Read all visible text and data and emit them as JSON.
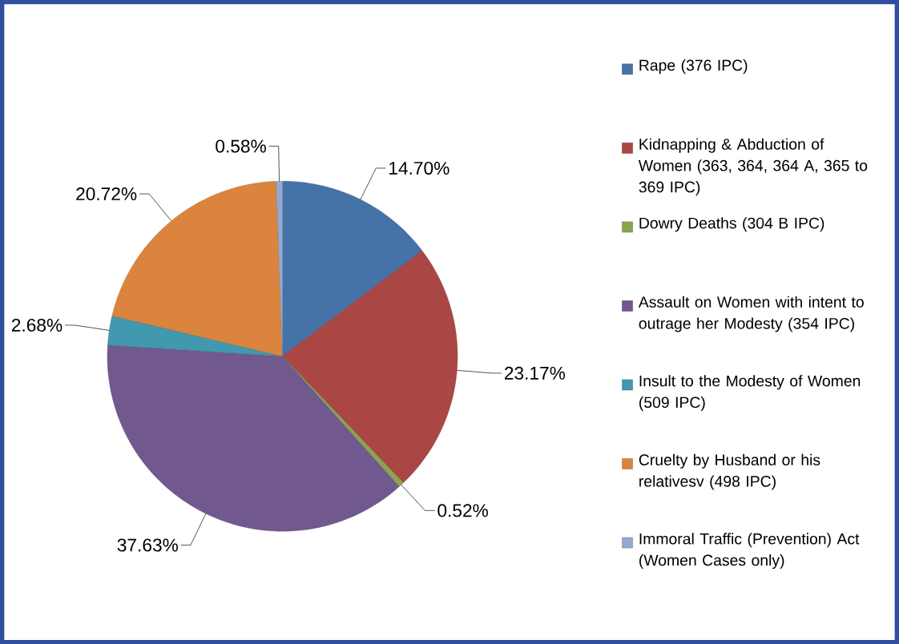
{
  "chart_data": {
    "type": "pie",
    "categories": [
      "Rape (376 IPC)",
      "Kidnapping & Abduction of Women  (363, 364, 364 A, 365 to 369 IPC)",
      "Dowry Deaths (304 B IPC)",
      "Assault on Women with intent to outrage her Modesty (354 IPC)",
      "Insult to the Modesty of Women (509 IPC)",
      "Cruelty by Husband or his relativesv (498 IPC)",
      "Immoral Traffic (Prevention) Act (Women Cases only)"
    ],
    "values": [
      14.7,
      23.17,
      0.52,
      37.63,
      2.68,
      20.72,
      0.58
    ],
    "value_labels": [
      "14.70%",
      "23.17%",
      "0.52%",
      "37.63%",
      "2.68%",
      "20.72%",
      "0.58%"
    ],
    "colors": [
      "#4572a7",
      "#aa4643",
      "#89a54e",
      "#71588f",
      "#4198af",
      "#db843d",
      "#93a9cf"
    ],
    "legend": "right"
  }
}
